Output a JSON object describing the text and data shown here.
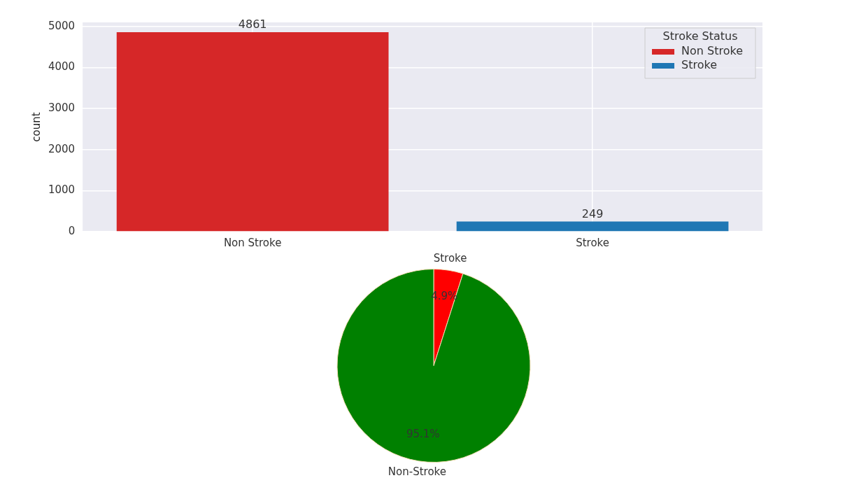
{
  "chart_data": [
    {
      "type": "bar",
      "categories": [
        "Non Stroke",
        "Stroke"
      ],
      "ylabel": "count",
      "legend_title": "Stroke Status",
      "legend": "top right",
      "grid": true,
      "data_labels": true,
      "ylim": [
        0,
        5100
      ],
      "yticks": [
        0,
        1000,
        2000,
        3000,
        4000,
        5000
      ],
      "series": [
        {
          "name": "Non Stroke",
          "color": "#d62728",
          "values": [
            4861,
            null
          ]
        },
        {
          "name": "Stroke",
          "color": "#1f77b4",
          "values": [
            null,
            249
          ]
        }
      ]
    },
    {
      "type": "pie",
      "categories": [
        "Stroke",
        "Non-Stroke"
      ],
      "values": [
        4.9,
        95.1
      ],
      "colors": [
        "#ff0000",
        "#008000"
      ],
      "value_labels": [
        "4.9%",
        "95.1%"
      ]
    }
  ]
}
